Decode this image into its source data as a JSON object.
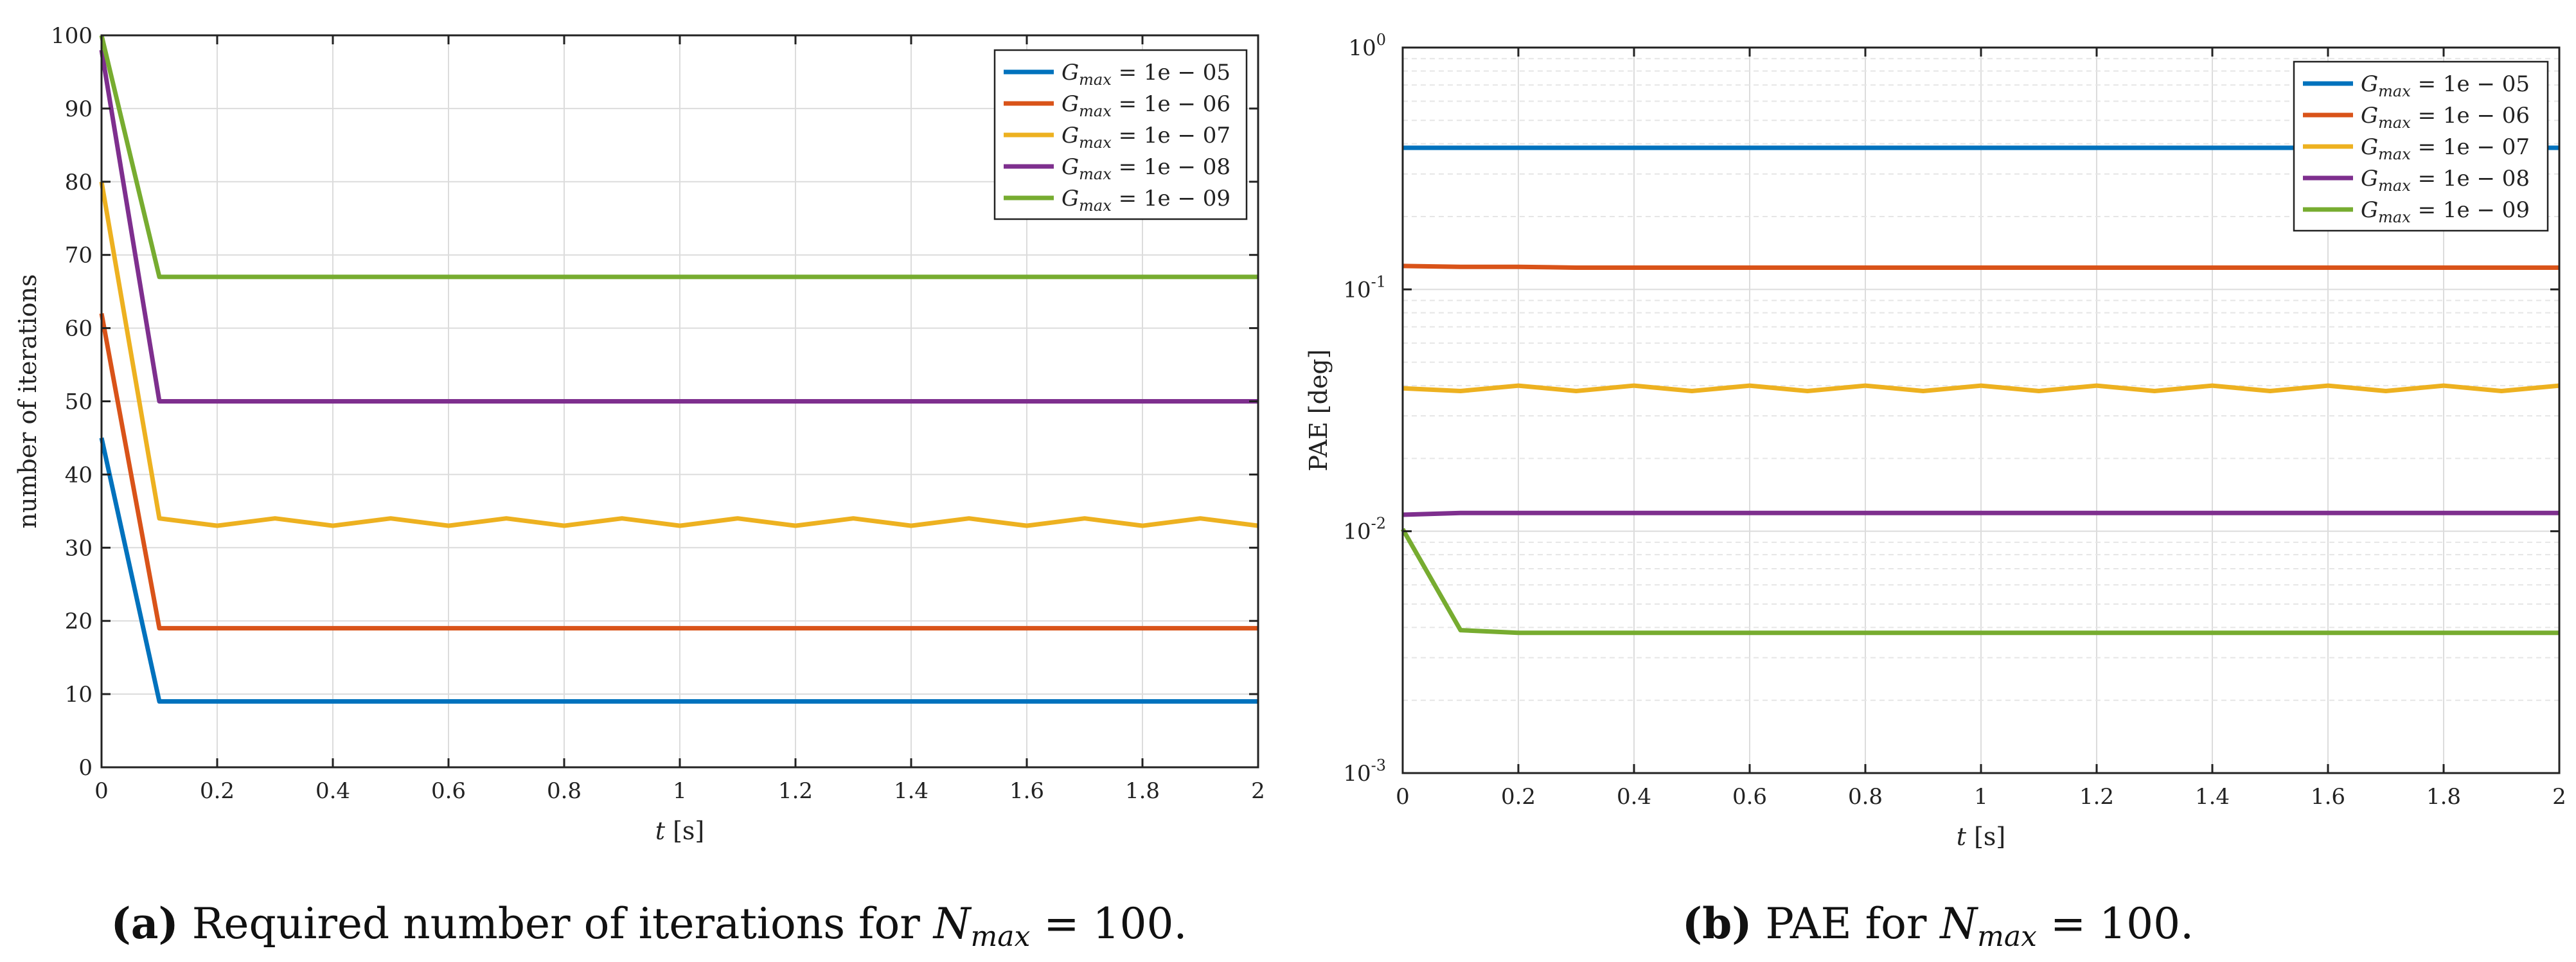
{
  "chart_data": [
    {
      "type": "line",
      "scale": "linear",
      "xlabel": "t [s]",
      "ylabel": "number of iterations",
      "xlim": [
        0,
        2
      ],
      "ylim": [
        0,
        100
      ],
      "xticks": [
        0,
        0.2,
        0.4,
        0.6,
        0.8,
        1,
        1.2,
        1.4,
        1.6,
        1.8,
        2
      ],
      "xtick_labels": [
        "0",
        "0.2",
        "0.4",
        "0.6",
        "0.8",
        "1",
        "1.2",
        "1.4",
        "1.6",
        "1.8",
        "2"
      ],
      "yticks": [
        0,
        10,
        20,
        30,
        40,
        50,
        60,
        70,
        80,
        90,
        100
      ],
      "ytick_labels": [
        "0",
        "10",
        "20",
        "30",
        "40",
        "50",
        "60",
        "70",
        "80",
        "90",
        "100"
      ],
      "grid": true,
      "legend_position": "top-right",
      "x": [
        0,
        0.1,
        0.2,
        0.3,
        0.4,
        0.5,
        0.6,
        0.7,
        0.8,
        0.9,
        1.0,
        1.1,
        1.2,
        1.3,
        1.4,
        1.5,
        1.6,
        1.7,
        1.8,
        1.9,
        2.0
      ],
      "series": [
        {
          "name": "G_max = 1e − 05",
          "color": "#0072BD",
          "values": [
            45,
            9,
            9,
            9,
            9,
            9,
            9,
            9,
            9,
            9,
            9,
            9,
            9,
            9,
            9,
            9,
            9,
            9,
            9,
            9,
            9
          ]
        },
        {
          "name": "G_max = 1e − 06",
          "color": "#D95319",
          "values": [
            62,
            19,
            19,
            19,
            19,
            19,
            19,
            19,
            19,
            19,
            19,
            19,
            19,
            19,
            19,
            19,
            19,
            19,
            19,
            19,
            19
          ]
        },
        {
          "name": "G_max = 1e − 07",
          "color": "#EDB120",
          "values": [
            80,
            34,
            33,
            34,
            33,
            34,
            33,
            34,
            33,
            34,
            33,
            34,
            33,
            34,
            33,
            34,
            33,
            34,
            33,
            34,
            33
          ]
        },
        {
          "name": "G_max = 1e − 08",
          "color": "#7E2F8E",
          "values": [
            98,
            50,
            50,
            50,
            50,
            50,
            50,
            50,
            50,
            50,
            50,
            50,
            50,
            50,
            50,
            50,
            50,
            50,
            50,
            50,
            50
          ]
        },
        {
          "name": "G_max = 1e − 09",
          "color": "#77AC30",
          "values": [
            100,
            67,
            67,
            67,
            67,
            67,
            67,
            67,
            67,
            67,
            67,
            67,
            67,
            67,
            67,
            67,
            67,
            67,
            67,
            67,
            67
          ]
        }
      ]
    },
    {
      "type": "line",
      "scale": "log",
      "xlabel": "t [s]",
      "ylabel": "PAE [deg]",
      "xlim": [
        0,
        2
      ],
      "ylim": [
        0.001,
        1
      ],
      "xticks": [
        0,
        0.2,
        0.4,
        0.6,
        0.8,
        1,
        1.2,
        1.4,
        1.6,
        1.8,
        2
      ],
      "xtick_labels": [
        "0",
        "0.2",
        "0.4",
        "0.6",
        "0.8",
        "1",
        "1.2",
        "1.4",
        "1.6",
        "1.8",
        "2"
      ],
      "yticks": [
        0.001,
        0.01,
        0.1,
        1
      ],
      "ytick_labels": [
        {
          "base": "10",
          "exp": "-3"
        },
        {
          "base": "10",
          "exp": "-2"
        },
        {
          "base": "10",
          "exp": "-1"
        },
        {
          "base": "10",
          "exp": "0"
        }
      ],
      "grid": true,
      "legend_position": "top-right",
      "x": [
        0,
        0.1,
        0.2,
        0.3,
        0.4,
        0.5,
        0.6,
        0.7,
        0.8,
        0.9,
        1.0,
        1.1,
        1.2,
        1.3,
        1.4,
        1.5,
        1.6,
        1.7,
        1.8,
        1.9,
        2.0
      ],
      "series": [
        {
          "name": "G_max = 1e − 05",
          "color": "#0072BD",
          "values": [
            0.385,
            0.385,
            0.385,
            0.385,
            0.385,
            0.385,
            0.385,
            0.385,
            0.385,
            0.385,
            0.385,
            0.385,
            0.385,
            0.385,
            0.385,
            0.385,
            0.385,
            0.385,
            0.385,
            0.385,
            0.385
          ]
        },
        {
          "name": "G_max = 1e − 06",
          "color": "#D95319",
          "values": [
            0.125,
            0.124,
            0.124,
            0.123,
            0.123,
            0.123,
            0.123,
            0.123,
            0.123,
            0.123,
            0.123,
            0.123,
            0.123,
            0.123,
            0.123,
            0.123,
            0.123,
            0.123,
            0.123,
            0.123,
            0.123
          ]
        },
        {
          "name": "G_max = 1e − 07",
          "color": "#EDB120",
          "values": [
            0.039,
            0.038,
            0.04,
            0.038,
            0.04,
            0.038,
            0.04,
            0.038,
            0.04,
            0.038,
            0.04,
            0.038,
            0.04,
            0.038,
            0.04,
            0.038,
            0.04,
            0.038,
            0.04,
            0.038,
            0.04
          ]
        },
        {
          "name": "G_max = 1e − 08",
          "color": "#7E2F8E",
          "values": [
            0.0117,
            0.0119,
            0.0119,
            0.0119,
            0.0119,
            0.0119,
            0.0119,
            0.0119,
            0.0119,
            0.0119,
            0.0119,
            0.0119,
            0.0119,
            0.0119,
            0.0119,
            0.0119,
            0.0119,
            0.0119,
            0.0119,
            0.0119,
            0.0119
          ]
        },
        {
          "name": "G_max = 1e − 09",
          "color": "#77AC30",
          "values": [
            0.0102,
            0.0039,
            0.0038,
            0.0038,
            0.0038,
            0.0038,
            0.0038,
            0.0038,
            0.0038,
            0.0038,
            0.0038,
            0.0038,
            0.0038,
            0.0038,
            0.0038,
            0.0038,
            0.0038,
            0.0038,
            0.0038,
            0.0038,
            0.0038
          ]
        }
      ]
    }
  ],
  "legend": {
    "symbol": "G",
    "subscript": "max",
    "entries": [
      "= 1e − 05",
      "= 1e − 06",
      "= 1e − 07",
      "= 1e − 08",
      "= 1e − 09"
    ]
  },
  "captions": [
    {
      "label": "(a)",
      "text": "Required number of iterations for ",
      "math": "N",
      "math_sub": "max",
      "tail": " = 100."
    },
    {
      "label": "(b)",
      "text": "PAE for ",
      "math": "N",
      "math_sub": "max",
      "tail": " = 100."
    }
  ]
}
